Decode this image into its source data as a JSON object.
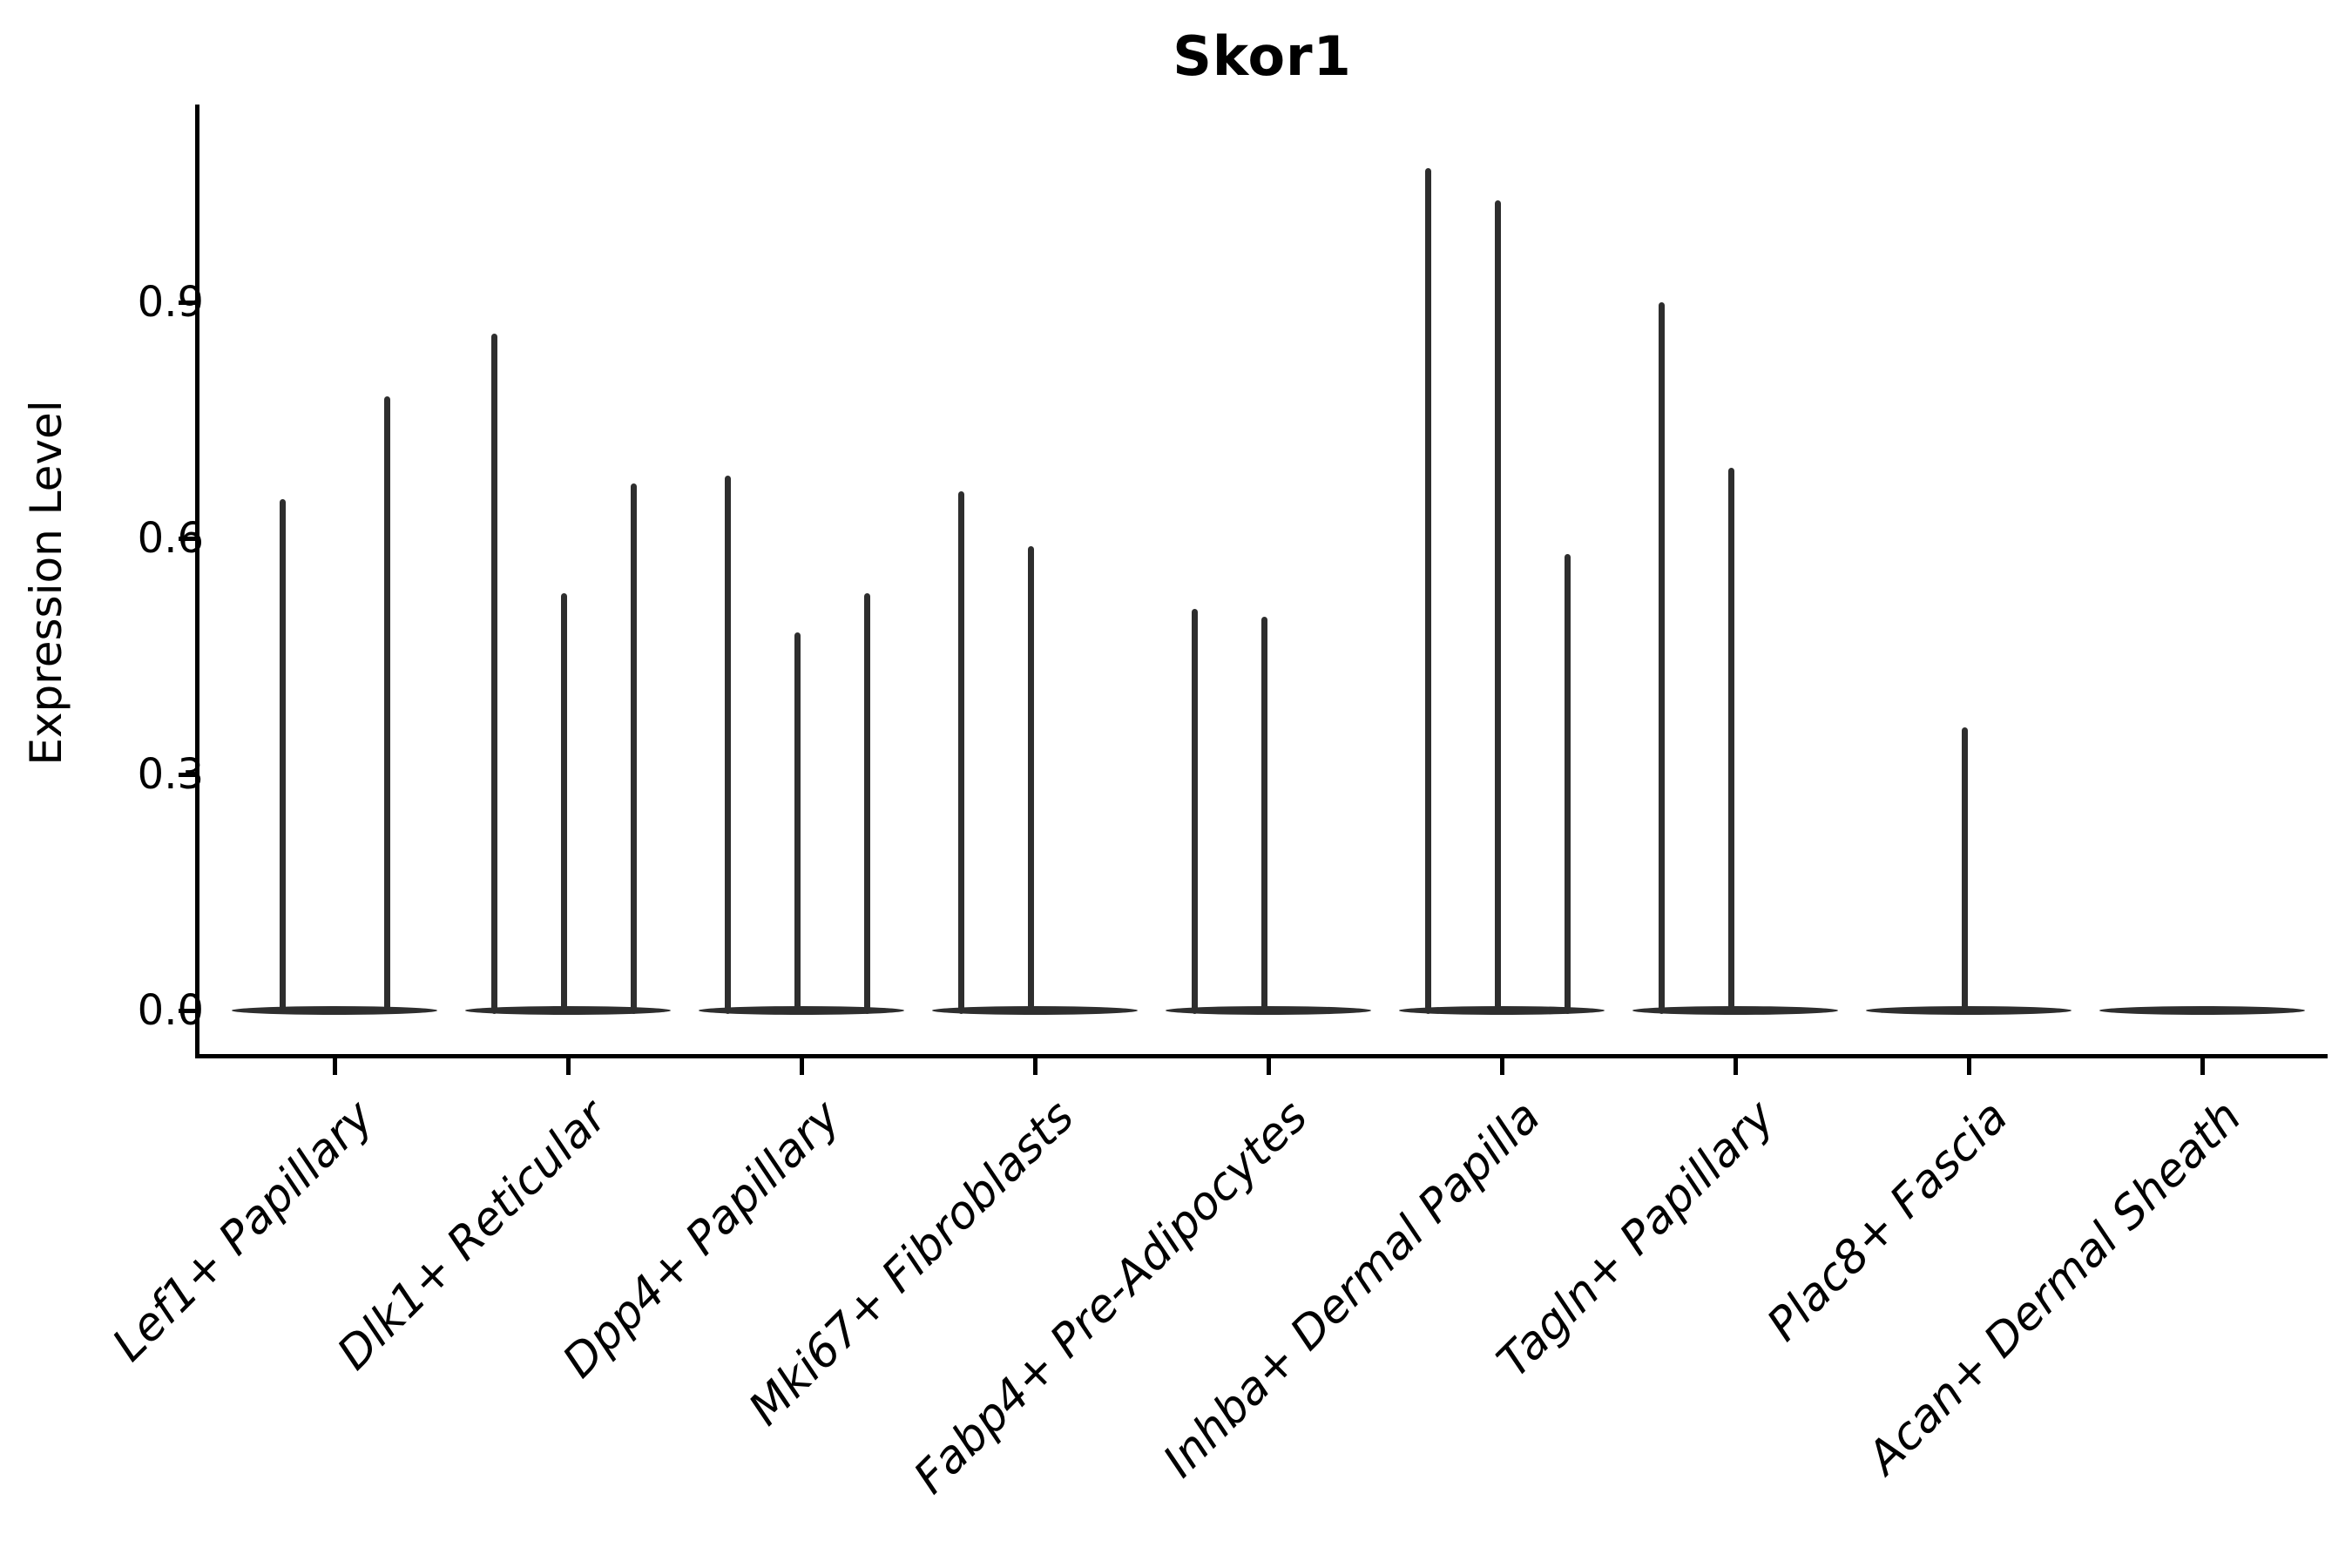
{
  "title": "Skor1",
  "ylabel": "Expression Level",
  "colors": {
    "violin": "#2e2e2e",
    "axis": "#000000",
    "background": "#ffffff"
  },
  "y_axis": {
    "tick_labels": [
      "0.0",
      "0.3",
      "0.6",
      "0.9"
    ],
    "tick_values": [
      0.0,
      0.3,
      0.6,
      0.9
    ]
  },
  "chart_data": {
    "type": "violin",
    "title": "Skor1",
    "xlabel": "",
    "ylabel": "Expression Level",
    "ylim": [
      0,
      1.15
    ],
    "yticks": [
      0.0,
      0.3,
      0.6,
      0.9
    ],
    "grid": false,
    "legend": "none",
    "description": "Stacked-violin style gene expression plot for Skor1. Each category shows flat violins concentrated at 0 with thin spikes reaching the maximum observed expression. Violin offsets are horizontal pixel offsets from the category tick; max is the spike top in expression units (0 = flat violin, no spike).",
    "categories": [
      "Lef1+ Papillary",
      "Dlk1+ Reticular",
      "Dpp4+ Papillary",
      "Mki67+ Fibroblasts",
      "Fabp4+ Pre-Adipocytes",
      "Inhba+ Dermal Papilla",
      "Tagln+ Papillary",
      "Plac8+ Fascia",
      "Acan+ Dermal Sheath"
    ],
    "groups": [
      {
        "label": "Lef1+ Papillary",
        "violins": [
          {
            "offset": -60,
            "max": 0.65
          },
          {
            "offset": 60,
            "max": 0.78
          }
        ]
      },
      {
        "label": "Dlk1+ Reticular",
        "violins": [
          {
            "offset": -85,
            "max": 0.86
          },
          {
            "offset": -5,
            "max": 0.53
          },
          {
            "offset": 75,
            "max": 0.67
          }
        ]
      },
      {
        "label": "Dpp4+ Papillary",
        "violins": [
          {
            "offset": -85,
            "max": 0.68
          },
          {
            "offset": -5,
            "max": 0.48
          },
          {
            "offset": 75,
            "max": 0.53
          }
        ]
      },
      {
        "label": "Mki67+ Fibroblasts",
        "violins": [
          {
            "offset": -85,
            "max": 0.66
          },
          {
            "offset": -5,
            "max": 0.59
          },
          {
            "offset": 75,
            "max": 0
          }
        ]
      },
      {
        "label": "Fabp4+ Pre-Adipocytes",
        "violins": [
          {
            "offset": -85,
            "max": 0.51
          },
          {
            "offset": -5,
            "max": 0.5
          },
          {
            "offset": 75,
            "max": 0
          }
        ]
      },
      {
        "label": "Inhba+ Dermal Papilla",
        "violins": [
          {
            "offset": -85,
            "max": 1.07
          },
          {
            "offset": -5,
            "max": 1.03
          },
          {
            "offset": 75,
            "max": 0.58
          }
        ]
      },
      {
        "label": "Tagln+ Papillary",
        "violins": [
          {
            "offset": -85,
            "max": 0.9
          },
          {
            "offset": -5,
            "max": 0.69
          },
          {
            "offset": 75,
            "max": 0
          }
        ]
      },
      {
        "label": "Plac8+ Fascia",
        "violins": [
          {
            "offset": -85,
            "max": 0
          },
          {
            "offset": -5,
            "max": 0.36
          },
          {
            "offset": 75,
            "max": 0
          }
        ]
      },
      {
        "label": "Acan+ Dermal Sheath",
        "violins": [
          {
            "offset": -85,
            "max": 0
          },
          {
            "offset": -5,
            "max": 0
          },
          {
            "offset": 75,
            "max": 0
          }
        ]
      }
    ]
  }
}
